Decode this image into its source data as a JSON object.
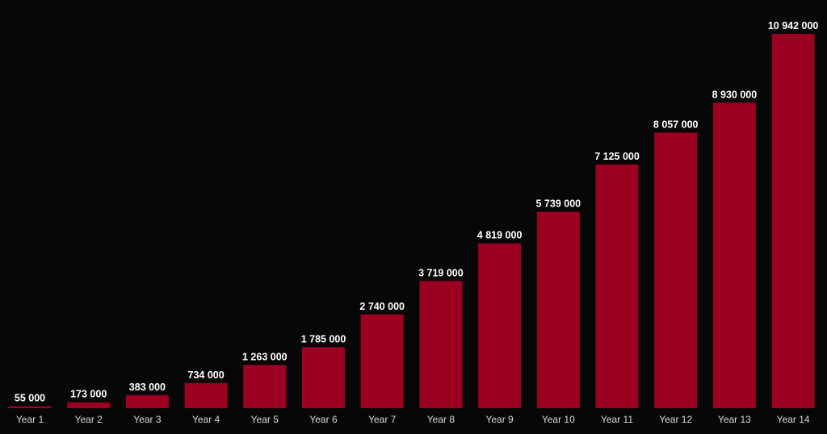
{
  "chart_data": {
    "type": "bar",
    "title": "",
    "xlabel": "",
    "ylabel": "",
    "categories": [
      "Year 1",
      "Year 2",
      "Year 3",
      "Year 4",
      "Year 5",
      "Year 6",
      "Year 7",
      "Year 8",
      "Year 9",
      "Year 10",
      "Year 11",
      "Year 12",
      "Year 13",
      "Year 14"
    ],
    "values": [
      55000,
      173000,
      383000,
      734000,
      1263000,
      1785000,
      2740000,
      3719000,
      4819000,
      5739000,
      7125000,
      8057000,
      8930000,
      10942000
    ],
    "value_labels": [
      "55 000",
      "173 000",
      "383 000",
      "734 000",
      "1 263 000",
      "1 785 000",
      "2 740 000",
      "3 719 000",
      "4 819 000",
      "5 739 000",
      "7 125 000",
      "8 057 000",
      "8 930 000",
      "10 942 000"
    ],
    "ylim": [
      0,
      10942000
    ],
    "grid": false,
    "legend": "none",
    "colors": {
      "background": "#080708",
      "bar": "#9b0020",
      "value_label": "#ffffff",
      "tick_label": "#d8d8d8"
    }
  }
}
